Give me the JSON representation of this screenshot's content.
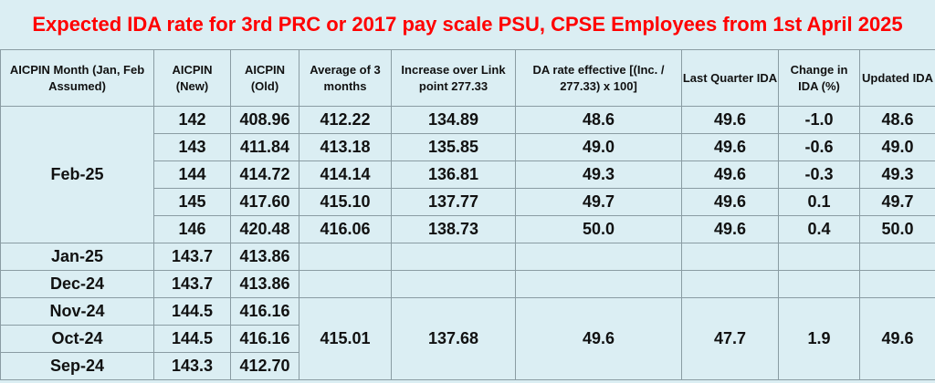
{
  "title": "Expected IDA rate for 3rd PRC or 2017 pay scale PSU, CPSE Employees from 1st April 2025",
  "columns": [
    "AICPIN Month (Jan, Feb Assumed)",
    "AICPIN (New)",
    "AICPIN (Old)",
    "Average of 3 months",
    "Increase over Link point 277.33",
    "DA rate effective [(Inc. / 277.33) x 100]",
    "Last Quarter IDA",
    "Change in IDA (%)",
    "Updated IDA"
  ],
  "feb_group": {
    "month": "Feb-25",
    "rows": [
      [
        "142",
        "408.96",
        "412.22",
        "134.89",
        "48.6",
        "49.6",
        "-1.0",
        "48.6"
      ],
      [
        "143",
        "411.84",
        "413.18",
        "135.85",
        "49.0",
        "49.6",
        "-0.6",
        "49.0"
      ],
      [
        "144",
        "414.72",
        "414.14",
        "136.81",
        "49.3",
        "49.6",
        "-0.3",
        "49.3"
      ],
      [
        "145",
        "417.60",
        "415.10",
        "137.77",
        "49.7",
        "49.6",
        "0.1",
        "49.7"
      ],
      [
        "146",
        "420.48",
        "416.06",
        "138.73",
        "50.0",
        "49.6",
        "0.4",
        "50.0"
      ]
    ]
  },
  "earlier_rows": [
    [
      "Jan-25",
      "143.7",
      "413.86"
    ],
    [
      "Dec-24",
      "143.7",
      "413.86"
    ],
    [
      "Nov-24",
      "144.5",
      "416.16"
    ],
    [
      "Oct-24",
      "144.5",
      "416.16"
    ],
    [
      "Sep-24",
      "143.3",
      "412.70"
    ]
  ],
  "earlier_summary": [
    "415.01",
    "137.68",
    "49.6",
    "47.7",
    "1.9",
    "49.6"
  ]
}
